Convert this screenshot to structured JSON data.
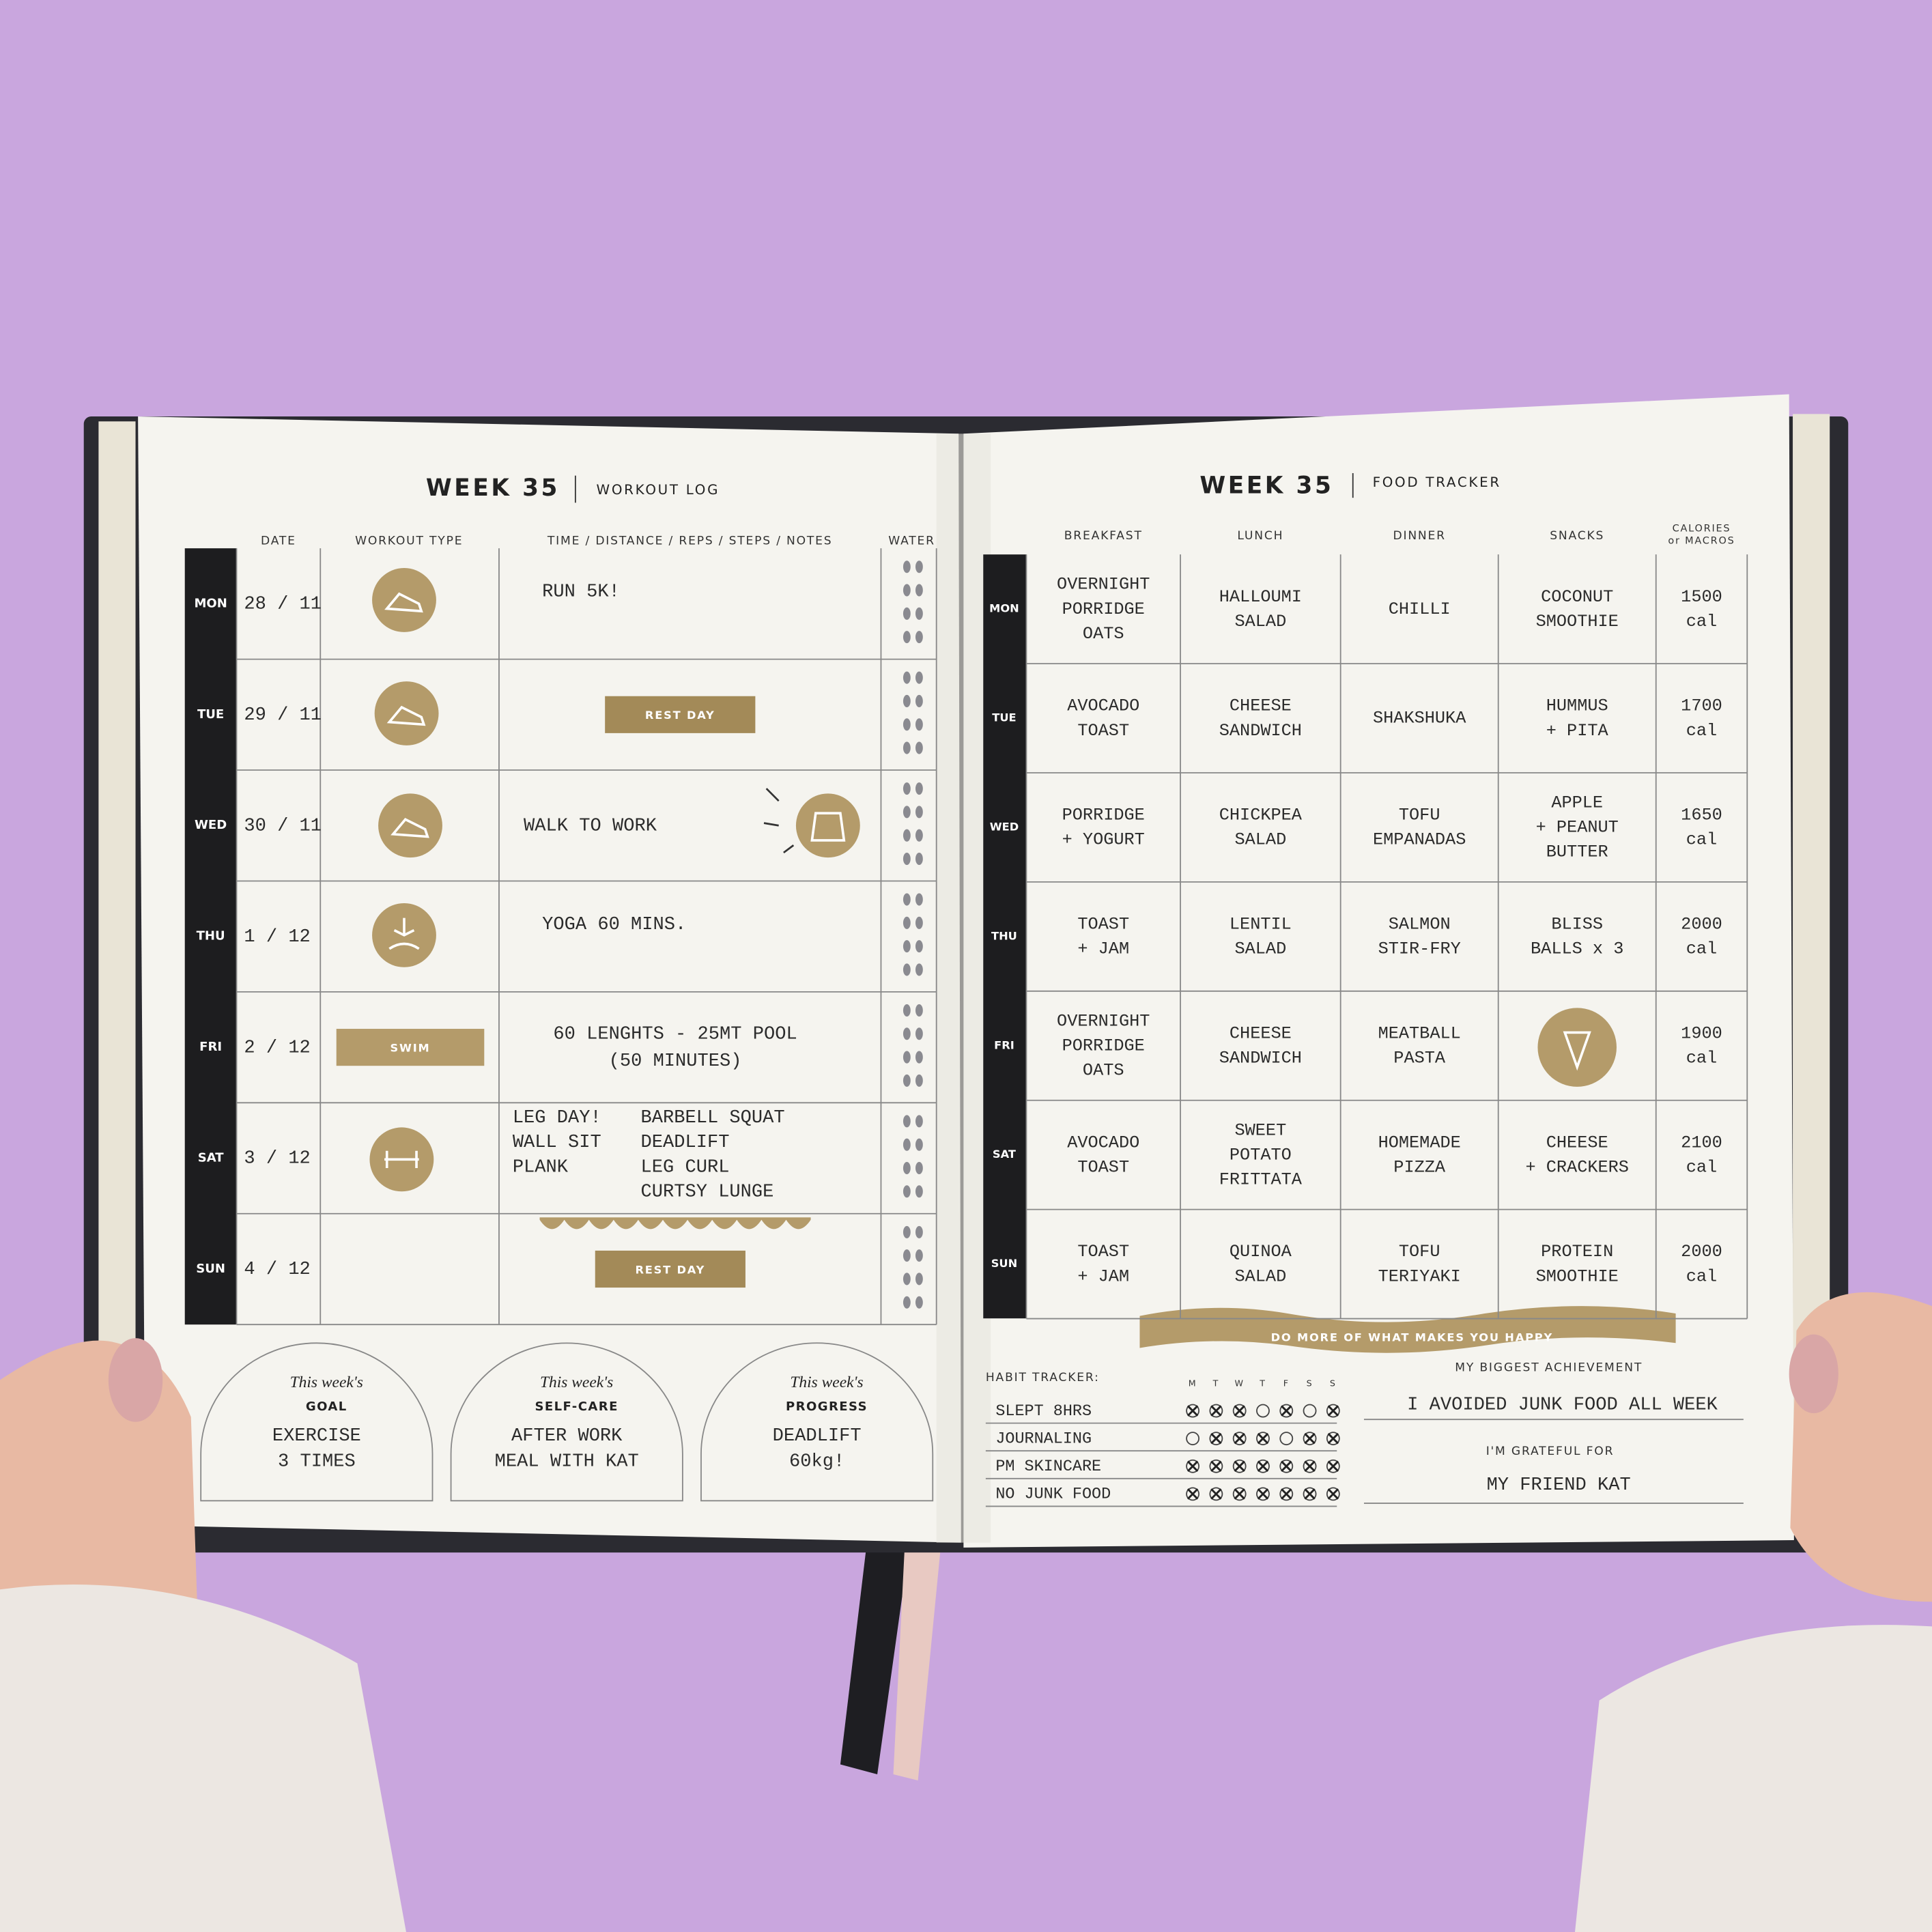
{
  "left_page": {
    "title": "WEEK 35",
    "subtitle": "WORKOUT LOG",
    "columns": [
      "DATE",
      "WORKOUT TYPE",
      "TIME / DISTANCE / REPS / STEPS / NOTES",
      "WATER"
    ],
    "rows": [
      {
        "day": "MON",
        "date": "28 / 11",
        "notes": [
          [
            "RUN 5K!"
          ]
        ]
      },
      {
        "day": "TUE",
        "date": "29 / 11",
        "sticker": "REST DAY"
      },
      {
        "day": "WED",
        "date": "30 / 11",
        "notes": [
          [
            "WALK TO WORK"
          ]
        ]
      },
      {
        "day": "THU",
        "date": "1 / 12",
        "notes": [
          [
            "YOGA 60 MINS."
          ]
        ]
      },
      {
        "day": "FRI",
        "date": "2 / 12",
        "workout": "SWIM",
        "notes": [
          [
            "60 LENGHTS - 25MT POOL",
            "(50 MINUTES)"
          ]
        ]
      },
      {
        "day": "SAT",
        "date": "3 / 12",
        "notes": [
          [
            "LEG DAY!",
            "WALL SIT",
            "PLANK"
          ],
          [
            "BARBELL SQUAT",
            "DEADLIFT",
            "LEG CURL",
            "CURTSY LUNGE"
          ]
        ]
      },
      {
        "day": "SUN",
        "date": "4 / 12",
        "sticker": "REST DAY"
      }
    ],
    "boxes": [
      {
        "heading": "This week's",
        "label": "GOAL",
        "text": [
          "EXERCISE",
          "3 TIMES"
        ]
      },
      {
        "heading": "This week's",
        "label": "SELF-CARE",
        "text": [
          "AFTER WORK",
          "MEAL WITH KAT"
        ]
      },
      {
        "heading": "This week's",
        "label": "PROGRESS",
        "text": [
          "DEADLIFT",
          "60kg!"
        ]
      }
    ]
  },
  "right_page": {
    "title": "WEEK 35",
    "subtitle": "FOOD TRACKER",
    "columns": [
      [
        "BREAKFAST"
      ],
      [
        "LUNCH"
      ],
      [
        "DINNER"
      ],
      [
        "SNACKS"
      ],
      [
        "CALORIES",
        "or MACROS"
      ]
    ],
    "rows": [
      {
        "day": "MON",
        "cells": [
          [
            "OVERNIGHT",
            "PORRIDGE",
            "OATS"
          ],
          [
            "HALLOUMI",
            "SALAD"
          ],
          [
            "CHILLI"
          ],
          [
            "COCONUT",
            "SMOOTHIE"
          ],
          [
            "1500",
            "cal"
          ]
        ]
      },
      {
        "day": "TUE",
        "cells": [
          [
            "AVOCADO",
            "TOAST"
          ],
          [
            "CHEESE",
            "SANDWICH"
          ],
          [
            "SHAKSHUKA"
          ],
          [
            "HUMMUS",
            "+ PITA"
          ],
          [
            "1700",
            "cal"
          ]
        ]
      },
      {
        "day": "WED",
        "cells": [
          [
            "PORRIDGE",
            "+ YOGURT"
          ],
          [
            "CHICKPEA",
            "SALAD"
          ],
          [
            "TOFU",
            "EMPANADAS"
          ],
          [
            "APPLE",
            "+ PEANUT",
            "BUTTER"
          ],
          [
            "1650",
            "cal"
          ]
        ]
      },
      {
        "day": "THU",
        "cells": [
          [
            "TOAST",
            "+ JAM"
          ],
          [
            "LENTIL",
            "SALAD"
          ],
          [
            "SALMON",
            "STIR-FRY"
          ],
          [
            "BLISS",
            "BALLS x 3"
          ],
          [
            "2000",
            "cal"
          ]
        ]
      },
      {
        "day": "FRI",
        "cells": [
          [
            "OVERNIGHT",
            "PORRIDGE",
            "OATS"
          ],
          [
            "CHEESE",
            "SANDWICH"
          ],
          [
            "MEATBALL",
            "PASTA"
          ],
          [],
          [
            "1900",
            "cal"
          ]
        ]
      },
      {
        "day": "SAT",
        "cells": [
          [
            "AVOCADO",
            "TOAST"
          ],
          [
            "SWEET",
            "POTATO",
            "FRITTATA"
          ],
          [
            "HOMEMADE",
            "PIZZA"
          ],
          [
            "CHEESE",
            "+ CRACKERS"
          ],
          [
            "2100",
            "cal"
          ]
        ]
      },
      {
        "day": "SUN",
        "cells": [
          [
            "TOAST",
            "+ JAM"
          ],
          [
            "QUINOA",
            "SALAD"
          ],
          [
            "TOFU",
            "TERIYAKI"
          ],
          [
            "PROTEIN",
            "SMOOTHIE"
          ],
          [
            "2000",
            "cal"
          ]
        ]
      }
    ],
    "banner": "DO MORE OF WHAT MAKES YOU HAPPY",
    "habit_tracker": {
      "title": "HABIT TRACKER:",
      "days": [
        "M",
        "T",
        "W",
        "T",
        "F",
        "S",
        "S"
      ],
      "habits": [
        {
          "name": "SLEPT 8HRS",
          "checks": [
            true,
            true,
            true,
            false,
            true,
            false,
            true
          ]
        },
        {
          "name": "JOURNALING",
          "checks": [
            false,
            true,
            true,
            true,
            false,
            true,
            true
          ]
        },
        {
          "name": "PM SKINCARE",
          "checks": [
            true,
            true,
            true,
            true,
            true,
            true,
            true
          ]
        },
        {
          "name": "NO JUNK FOOD",
          "checks": [
            true,
            true,
            true,
            true,
            true,
            true,
            true
          ]
        }
      ]
    },
    "achievement": {
      "label": "MY BIGGEST ACHIEVEMENT",
      "text": "I AVOIDED JUNK FOOD ALL WEEK"
    },
    "grateful": {
      "label": "I'M GRATEFUL FOR",
      "text": "MY FRIEND KAT"
    }
  }
}
